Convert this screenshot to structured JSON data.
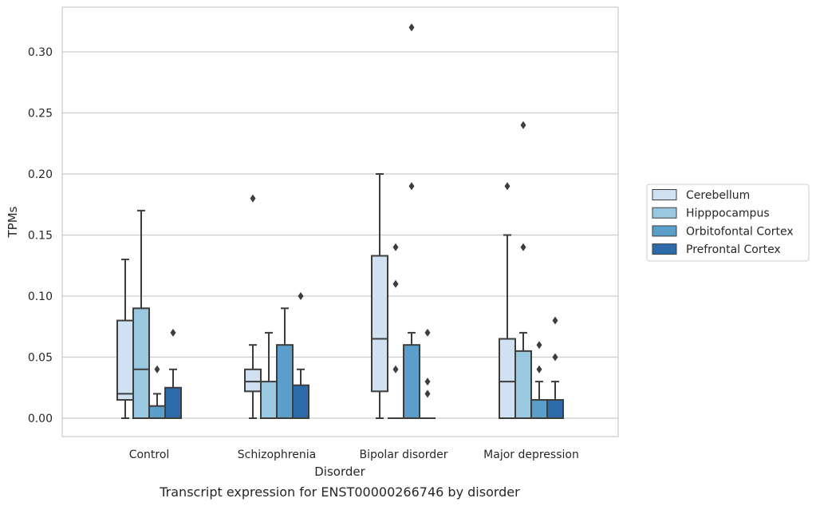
{
  "chart_data": {
    "type": "boxplot",
    "xlabel": "Disorder",
    "ylabel": "TPMs",
    "caption": "Transcript expression for ENST00000266746 by disorder",
    "ylim": [
      -0.016,
      0.337
    ],
    "yticks": [
      "0.00",
      "0.05",
      "0.10",
      "0.15",
      "0.20",
      "0.25",
      "0.30"
    ],
    "grid": "horizontal",
    "legend_position": "right, outside plot",
    "categories": [
      "Control",
      "Schizophrenia",
      "Bipolar disorder",
      "Major depression"
    ],
    "series": [
      {
        "name": "Cerebellum",
        "color": "#d0e1f2",
        "boxes": [
          {
            "whislo": 0.0,
            "q1": 0.015,
            "med": 0.02,
            "q3": 0.08,
            "whishi": 0.13,
            "fliers": []
          },
          {
            "whislo": 0.0,
            "q1": 0.022,
            "med": 0.03,
            "q3": 0.04,
            "whishi": 0.06,
            "fliers": [
              0.18
            ]
          },
          {
            "whislo": 0.0,
            "q1": 0.022,
            "med": 0.065,
            "q3": 0.133,
            "whishi": 0.2,
            "fliers": []
          },
          {
            "whislo": 0.0,
            "q1": 0.0,
            "med": 0.03,
            "q3": 0.065,
            "whishi": 0.15,
            "fliers": [
              0.19
            ]
          }
        ]
      },
      {
        "name": "Hipppocampus",
        "color": "#9ac8e0",
        "boxes": [
          {
            "whislo": 0.0,
            "q1": 0.0,
            "med": 0.04,
            "q3": 0.09,
            "whishi": 0.17,
            "fliers": []
          },
          {
            "whislo": 0.0,
            "q1": 0.0,
            "med": 0.0,
            "q3": 0.03,
            "whishi": 0.07,
            "fliers": []
          },
          {
            "whislo": 0.0,
            "q1": 0.0,
            "med": 0.0,
            "q3": 0.0,
            "whishi": 0.0,
            "fliers": [
              0.04,
              0.11,
              0.14
            ]
          },
          {
            "whislo": 0.0,
            "q1": 0.0,
            "med": 0.0,
            "q3": 0.055,
            "whishi": 0.07,
            "fliers": [
              0.14,
              0.24
            ]
          }
        ]
      },
      {
        "name": "Orbitofontal Cortex",
        "color": "#5a9ec9",
        "boxes": [
          {
            "whislo": 0.0,
            "q1": 0.0,
            "med": 0.0,
            "q3": 0.01,
            "whishi": 0.02,
            "fliers": [
              0.04
            ]
          },
          {
            "whislo": 0.0,
            "q1": 0.0,
            "med": 0.0,
            "q3": 0.06,
            "whishi": 0.09,
            "fliers": []
          },
          {
            "whislo": 0.0,
            "q1": 0.0,
            "med": 0.0,
            "q3": 0.06,
            "whishi": 0.07,
            "fliers": [
              0.19,
              0.32
            ]
          },
          {
            "whislo": 0.0,
            "q1": 0.0,
            "med": 0.0,
            "q3": 0.015,
            "whishi": 0.03,
            "fliers": [
              0.04,
              0.06
            ]
          }
        ]
      },
      {
        "name": "Prefrontal Cortex",
        "color": "#2c6aa9",
        "boxes": [
          {
            "whislo": 0.0,
            "q1": 0.0,
            "med": 0.0,
            "q3": 0.025,
            "whishi": 0.04,
            "fliers": [
              0.07
            ]
          },
          {
            "whislo": 0.0,
            "q1": 0.0,
            "med": 0.0,
            "q3": 0.027,
            "whishi": 0.04,
            "fliers": [
              0.1
            ]
          },
          {
            "whislo": 0.0,
            "q1": 0.0,
            "med": 0.0,
            "q3": 0.0,
            "whishi": 0.0,
            "fliers": [
              0.02,
              0.03,
              0.07
            ]
          },
          {
            "whislo": 0.0,
            "q1": 0.0,
            "med": 0.0,
            "q3": 0.015,
            "whishi": 0.03,
            "fliers": [
              0.05,
              0.08
            ]
          }
        ]
      }
    ]
  }
}
